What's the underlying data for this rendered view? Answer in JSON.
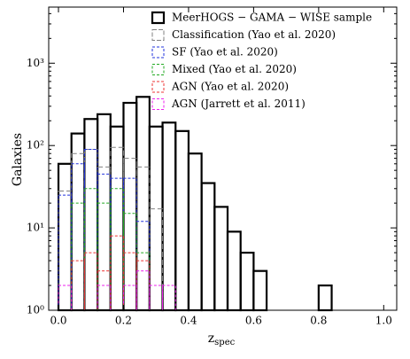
{
  "chart_data": {
    "type": "histogram",
    "y_label": "Galaxies",
    "x_label": [
      "z",
      "spec"
    ],
    "bins": [
      0,
      0.04,
      0.08,
      0.12,
      0.16,
      0.2,
      0.24,
      0.28,
      0.32,
      0.36,
      0.4,
      0.44,
      0.48,
      0.52,
      0.56,
      0.6,
      0.64,
      0.68,
      0.72,
      0.76,
      0.8,
      0.84
    ],
    "series": [
      {
        "name": "MeerHOGS − GAMA − WISE sample",
        "color": "#000000",
        "dash": false,
        "values": [
          60,
          140,
          210,
          240,
          170,
          330,
          390,
          170,
          190,
          150,
          80,
          35,
          18,
          9,
          5,
          3,
          0,
          0,
          0,
          0,
          2
        ]
      },
      {
        "name": "Classification (Yao et al. 2020)",
        "color": "#808080",
        "dash": true,
        "values": [
          28,
          80,
          90,
          55,
          95,
          70,
          55,
          17,
          0,
          0,
          0,
          0,
          0,
          0,
          0,
          0,
          0,
          0,
          0,
          0,
          0
        ]
      },
      {
        "name": "SF (Yao et al. 2020)",
        "color": "#2233dd",
        "dash": true,
        "values": [
          25,
          60,
          90,
          45,
          40,
          40,
          12,
          0,
          0,
          0,
          0,
          0,
          0,
          0,
          0,
          0,
          0,
          0,
          0,
          0,
          0
        ]
      },
      {
        "name": "Mixed (Yao et al. 2020)",
        "color": "#22aa22",
        "dash": true,
        "values": [
          1,
          20,
          30,
          20,
          30,
          15,
          5,
          0,
          0,
          0,
          0,
          0,
          0,
          0,
          0,
          0,
          0,
          0,
          0,
          0,
          0
        ]
      },
      {
        "name": "AGN (Yao et al. 2020)",
        "color": "#ee3333",
        "dash": true,
        "values": [
          0,
          4,
          5,
          3,
          8,
          5,
          4,
          0,
          0,
          0,
          0,
          0,
          0,
          0,
          0,
          0,
          0,
          0,
          0,
          0,
          0
        ]
      },
      {
        "name": "AGN (Jarrett et al. 2011)",
        "color": "#ee22ee",
        "dash": true,
        "values": [
          2,
          1,
          1,
          2,
          1,
          2,
          3,
          2,
          2,
          1,
          0,
          0,
          0,
          0,
          0,
          0,
          0,
          0,
          0,
          0,
          0
        ]
      }
    ],
    "xlim": [
      -0.03,
      1.04
    ],
    "xticks": [
      {
        "value": 0,
        "label": "0.0"
      },
      0.2,
      0.4,
      0.6,
      0.8,
      {
        "value": 1,
        "label": "1.0"
      }
    ],
    "ylim": [
      1,
      4800
    ],
    "yticks": [
      {
        "value": 1,
        "label": "10⁰"
      },
      {
        "value": 10,
        "label": "10¹"
      },
      {
        "value": 100,
        "label": "10²"
      },
      {
        "value": 1000,
        "label": "10³"
      }
    ],
    "log_y": true,
    "legend": "upper right"
  }
}
